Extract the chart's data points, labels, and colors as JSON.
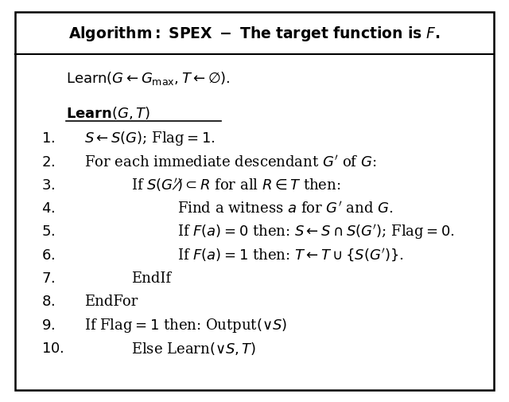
{
  "bg_color": "#ffffff",
  "border_color": "#000000",
  "text_color": "#000000",
  "fig_width": 6.4,
  "fig_height": 5.05
}
